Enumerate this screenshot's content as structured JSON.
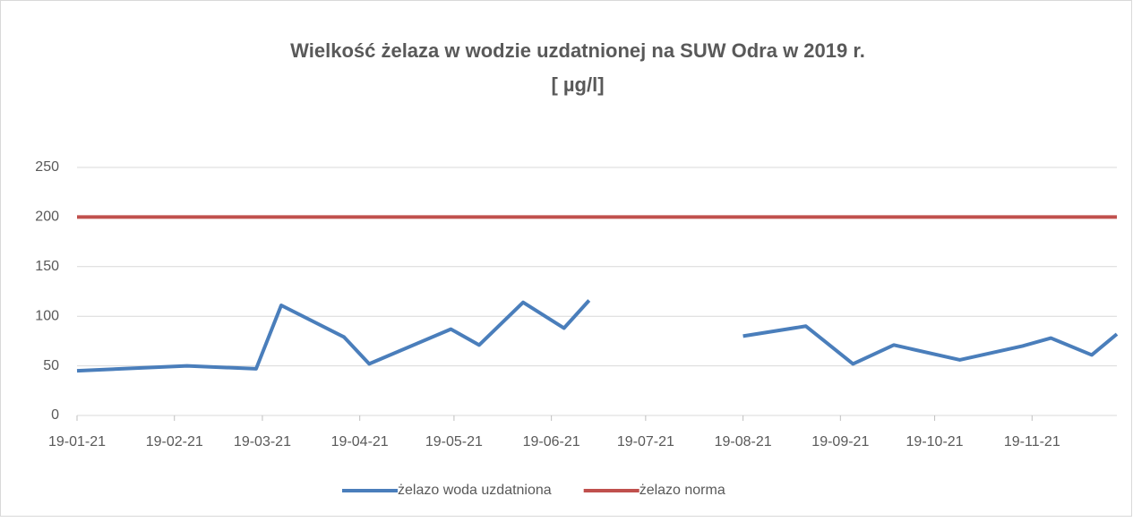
{
  "chart_data": {
    "type": "line",
    "title": [
      "Wielkość żelaza w wodzie uzdatnionej na SUW Odra w 2019 r.",
      "[ µg/l]"
    ],
    "x": [
      "2019-01-21",
      "2019-02-25",
      "2019-03-19",
      "2019-03-27",
      "2019-04-16",
      "2019-04-24",
      "2019-05-20",
      "2019-05-29",
      "2019-06-12",
      "2019-06-25",
      "2019-07-03",
      "2019-07-27",
      "2019-08-21",
      "2019-09-10",
      "2019-09-25",
      "2019-10-08",
      "2019-10-29",
      "2019-11-18",
      "2019-11-27",
      "2019-12-10",
      "2019-12-18"
    ],
    "series": [
      {
        "name": "żelazo woda uzdatniona",
        "color": "#4a7ebb",
        "values": [
          45,
          50,
          47,
          111,
          79,
          52,
          87,
          71,
          114,
          88,
          116,
          null,
          80,
          90,
          52,
          71,
          56,
          70,
          78,
          61,
          82
        ]
      },
      {
        "name": "żelazo norma",
        "color": "#c0504d",
        "values": [
          200,
          200,
          200,
          200,
          200,
          200,
          200,
          200,
          200,
          200,
          200,
          200,
          200,
          200,
          200,
          200,
          200,
          200,
          200,
          200,
          200
        ]
      }
    ],
    "xlim": [
      "2019-01-21",
      "2019-12-18"
    ],
    "xticks": [
      {
        "value": "2019-01-21",
        "label": "19-01-21"
      },
      {
        "value": "2019-02-21",
        "label": "19-02-21"
      },
      {
        "value": "2019-03-21",
        "label": "19-03-21"
      },
      {
        "value": "2019-04-21",
        "label": "19-04-21"
      },
      {
        "value": "2019-05-21",
        "label": "19-05-21"
      },
      {
        "value": "2019-06-21",
        "label": "19-06-21"
      },
      {
        "value": "2019-07-21",
        "label": "19-07-21"
      },
      {
        "value": "2019-08-21",
        "label": "19-08-21"
      },
      {
        "value": "2019-09-21",
        "label": "19-09-21"
      },
      {
        "value": "2019-10-21",
        "label": "19-10-21"
      },
      {
        "value": "2019-11-21",
        "label": "19-11-21"
      }
    ],
    "ylim": [
      0,
      250
    ],
    "yticks": [
      0,
      50,
      100,
      150,
      200,
      250
    ],
    "grid": true,
    "legend": "bottom"
  }
}
